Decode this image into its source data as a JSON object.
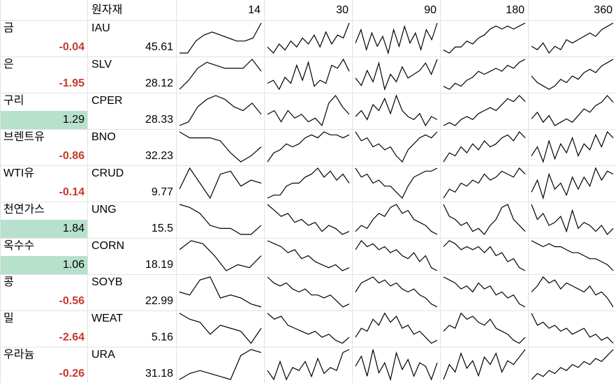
{
  "header": {
    "label": "원자재",
    "periods": [
      14,
      30,
      90,
      180,
      360
    ]
  },
  "negative_color": "#c5392c",
  "positive_fill": "#b7e1cd",
  "rows": [
    {
      "name": "금",
      "change": -0.04,
      "ticker": "IAU",
      "price": 45.61,
      "sparklines": [
        [
          0,
          0,
          4,
          6,
          7,
          6,
          5,
          4,
          4,
          5,
          10
        ],
        [
          2,
          0,
          3,
          1,
          4,
          2,
          5,
          3,
          6,
          2,
          7,
          3,
          6,
          5,
          10
        ],
        [
          4,
          8,
          2,
          7,
          3,
          6,
          1,
          8,
          3,
          9,
          4,
          7,
          2,
          8,
          5,
          10
        ],
        [
          1,
          0,
          2,
          2,
          4,
          3,
          5,
          6,
          8,
          9,
          8,
          9,
          8,
          9,
          10
        ],
        [
          3,
          2,
          4,
          1,
          3,
          2,
          5,
          4,
          5,
          6,
          7,
          6,
          8,
          9,
          10
        ]
      ]
    },
    {
      "name": "은",
      "change": -1.95,
      "ticker": "SLV",
      "price": 28.12,
      "sparklines": [
        [
          0,
          3,
          7,
          9,
          8,
          7,
          7,
          7,
          10,
          6
        ],
        [
          2,
          3,
          0,
          4,
          2,
          8,
          3,
          9,
          1,
          3,
          2,
          8,
          7,
          10,
          6
        ],
        [
          5,
          3,
          7,
          4,
          9,
          2,
          6,
          4,
          8,
          5,
          6,
          7,
          9,
          6,
          10
        ],
        [
          1,
          0,
          2,
          1,
          3,
          4,
          6,
          5,
          6,
          7,
          6,
          8,
          7,
          9,
          10
        ],
        [
          5,
          3,
          2,
          1,
          2,
          4,
          3,
          5,
          4,
          6,
          7,
          6,
          8,
          9,
          10
        ]
      ]
    },
    {
      "name": "구리",
      "change": 1.29,
      "ticker": "CPER",
      "price": 28.33,
      "sparklines": [
        [
          2,
          3,
          7,
          9,
          10,
          9,
          7,
          6,
          8,
          5
        ],
        [
          5,
          6,
          3,
          6,
          4,
          5,
          3,
          4,
          2,
          8,
          10,
          7,
          5
        ],
        [
          3,
          5,
          2,
          7,
          5,
          9,
          4,
          10,
          5,
          3,
          2,
          4,
          0,
          3,
          2
        ],
        [
          0,
          1,
          0,
          2,
          3,
          2,
          4,
          5,
          6,
          5,
          7,
          9,
          8,
          10,
          8
        ],
        [
          3,
          5,
          2,
          4,
          1,
          2,
          3,
          2,
          4,
          6,
          5,
          7,
          8,
          10,
          8
        ]
      ]
    },
    {
      "name": "브렌트유",
      "change": -0.86,
      "ticker": "BNO",
      "price": 32.23,
      "sparklines": [
        [
          10,
          8,
          8,
          8,
          7,
          3,
          0,
          2,
          5
        ],
        [
          0,
          3,
          4,
          6,
          5,
          6,
          8,
          9,
          8,
          10,
          9,
          9,
          8,
          9
        ],
        [
          10,
          7,
          8,
          5,
          6,
          4,
          5,
          2,
          0,
          4,
          6,
          8,
          9,
          8,
          10
        ],
        [
          0,
          3,
          2,
          5,
          3,
          6,
          4,
          7,
          5,
          6,
          8,
          9,
          7,
          10,
          8
        ],
        [
          2,
          5,
          0,
          7,
          1,
          6,
          3,
          8,
          2,
          6,
          4,
          9,
          5,
          10,
          8
        ]
      ]
    },
    {
      "name": "WTI유",
      "change": -0.14,
      "ticker": "CRUD",
      "price": 9.77,
      "sparklines": [
        [
          3,
          10,
          5,
          0,
          8,
          9,
          4,
          6,
          5
        ],
        [
          0,
          1,
          1,
          4,
          5,
          5,
          7,
          8,
          10,
          7,
          9,
          6,
          8,
          5
        ],
        [
          10,
          7,
          8,
          5,
          6,
          4,
          4,
          2,
          0,
          4,
          7,
          8,
          9,
          9,
          10
        ],
        [
          0,
          3,
          2,
          5,
          4,
          6,
          5,
          8,
          6,
          7,
          9,
          8,
          7,
          10,
          8
        ],
        [
          2,
          6,
          0,
          8,
          3,
          5,
          1,
          7,
          3,
          7,
          4,
          10,
          6,
          9,
          8
        ]
      ]
    },
    {
      "name": "천연가스",
      "change": 1.84,
      "ticker": "UNG",
      "price": 15.5,
      "sparklines": [
        [
          10,
          9,
          7,
          3,
          2,
          2,
          0,
          0,
          3
        ],
        [
          10,
          8,
          6,
          7,
          4,
          5,
          3,
          4,
          1,
          3,
          2,
          0,
          1
        ],
        [
          1,
          3,
          2,
          5,
          7,
          6,
          9,
          10,
          7,
          8,
          5,
          4,
          3,
          1,
          0
        ],
        [
          10,
          6,
          5,
          3,
          4,
          1,
          2,
          0,
          3,
          5,
          9,
          10,
          5,
          3,
          1
        ],
        [
          10,
          5,
          7,
          3,
          4,
          6,
          1,
          8,
          2,
          4,
          3,
          1,
          3,
          0,
          2
        ]
      ]
    },
    {
      "name": "옥수수",
      "change": 1.06,
      "ticker": "CORN",
      "price": 18.19,
      "sparklines": [
        [
          7,
          10,
          9,
          5,
          0,
          2,
          1,
          5
        ],
        [
          10,
          9,
          8,
          6,
          7,
          4,
          5,
          3,
          2,
          1,
          2,
          0,
          1
        ],
        [
          7,
          10,
          8,
          9,
          7,
          8,
          6,
          7,
          5,
          4,
          6,
          3,
          5,
          1,
          0
        ],
        [
          8,
          10,
          9,
          7,
          8,
          7,
          8,
          6,
          8,
          5,
          6,
          3,
          4,
          1,
          0
        ],
        [
          10,
          9,
          8,
          9,
          8,
          8,
          7,
          6,
          6,
          5,
          4,
          4,
          3,
          2,
          0
        ]
      ]
    },
    {
      "name": "콩",
      "change": -0.56,
      "ticker": "SOYB",
      "price": 22.99,
      "sparklines": [
        [
          5,
          4,
          9,
          10,
          3,
          4,
          3,
          1,
          0
        ],
        [
          10,
          8,
          7,
          8,
          6,
          5,
          6,
          4,
          4,
          3,
          4,
          2,
          0,
          1
        ],
        [
          5,
          8,
          9,
          10,
          8,
          9,
          7,
          8,
          6,
          5,
          6,
          4,
          3,
          1,
          0
        ],
        [
          10,
          9,
          8,
          6,
          7,
          5,
          8,
          6,
          7,
          4,
          5,
          3,
          4,
          1,
          0
        ],
        [
          5,
          7,
          10,
          8,
          9,
          6,
          8,
          7,
          6,
          5,
          7,
          4,
          5,
          3,
          0
        ]
      ]
    },
    {
      "name": "밀",
      "change": -2.64,
      "ticker": "WEAT",
      "price": 5.16,
      "sparklines": [
        [
          10,
          8,
          7,
          3,
          6,
          5,
          4,
          0,
          5
        ],
        [
          10,
          8,
          9,
          6,
          5,
          4,
          3,
          4,
          2,
          3,
          1,
          0,
          2
        ],
        [
          2,
          5,
          4,
          8,
          6,
          10,
          7,
          9,
          5,
          6,
          3,
          4,
          2,
          0,
          1
        ],
        [
          4,
          6,
          5,
          10,
          8,
          9,
          7,
          6,
          8,
          5,
          4,
          3,
          1,
          0,
          2
        ],
        [
          10,
          6,
          7,
          5,
          6,
          4,
          5,
          3,
          4,
          5,
          2,
          3,
          1,
          2,
          0
        ]
      ]
    },
    {
      "name": "우라늄",
      "change": -0.26,
      "ticker": "URA",
      "price": 31.18,
      "sparklines": [
        [
          0,
          2,
          3,
          2,
          1,
          0,
          8,
          10,
          9
        ],
        [
          3,
          0,
          6,
          0,
          4,
          3,
          6,
          1,
          7,
          2,
          4,
          3,
          9,
          10
        ],
        [
          5,
          8,
          2,
          10,
          3,
          6,
          1,
          9,
          4,
          7,
          2,
          6,
          5,
          1,
          6
        ],
        [
          2,
          6,
          4,
          9,
          5,
          7,
          3,
          8,
          6,
          9,
          4,
          7,
          6,
          8,
          10
        ],
        [
          0,
          2,
          1,
          3,
          2,
          4,
          3,
          5,
          4,
          6,
          5,
          7,
          6,
          8,
          10
        ]
      ]
    }
  ]
}
